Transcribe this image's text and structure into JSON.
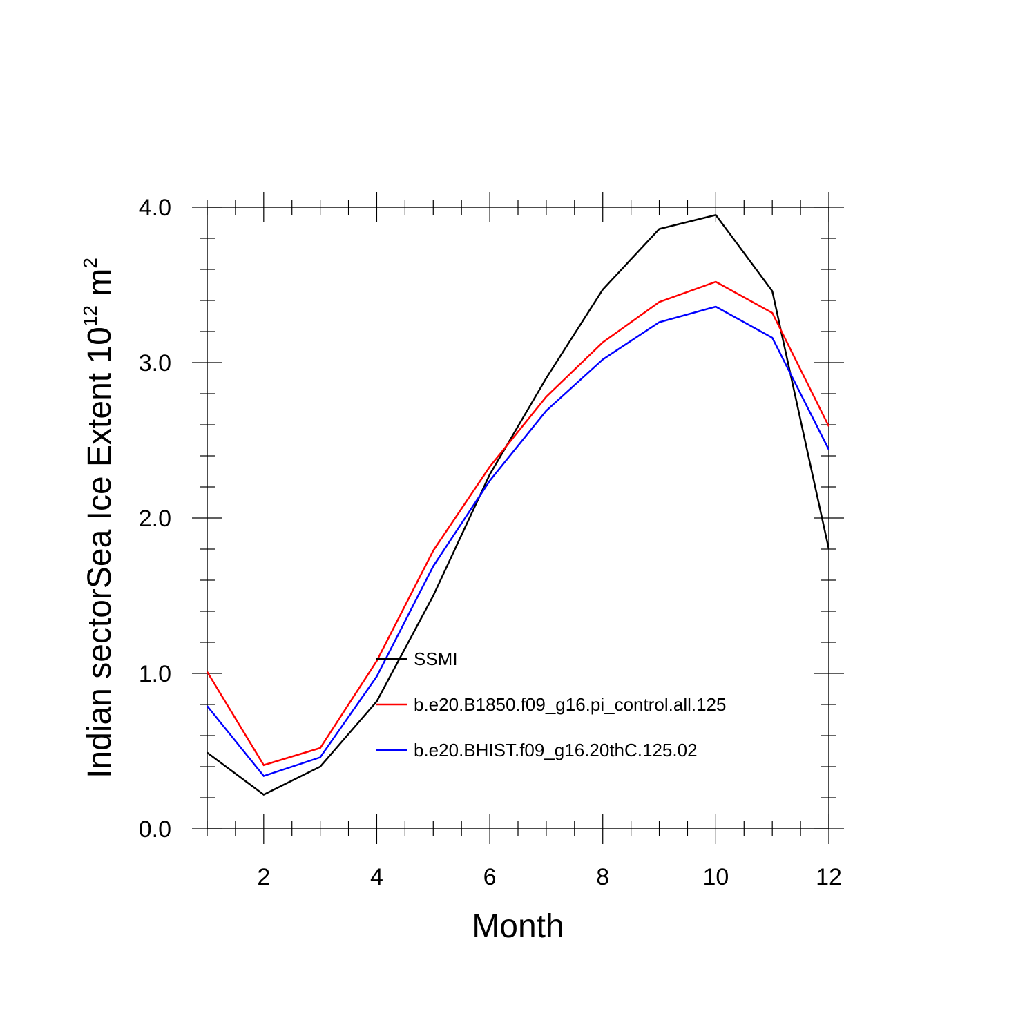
{
  "chart_data": {
    "type": "line",
    "title": "",
    "xlabel": "Month",
    "ylabel": {
      "prefix": "Indian sectorSea Ice Extent 10",
      "exp1": "12",
      "mid": " m",
      "exp2": "2"
    },
    "xlim": [
      1,
      12
    ],
    "ylim": [
      0,
      4
    ],
    "xticks": [
      2,
      4,
      6,
      8,
      10,
      12
    ],
    "xtick_labels": [
      "2",
      "4",
      "6",
      "8",
      "10",
      "12"
    ],
    "yticks": [
      0,
      1,
      2,
      3,
      4
    ],
    "ytick_labels": [
      "0.0",
      "1.0",
      "2.0",
      "3.0",
      "4.0"
    ],
    "grid": false,
    "legend_position": "center",
    "x": [
      1,
      2,
      3,
      4,
      5,
      6,
      7,
      8,
      9,
      10,
      11,
      12
    ],
    "series": [
      {
        "name": "SSMI",
        "color": "#000000",
        "values": [
          0.49,
          0.22,
          0.4,
          0.82,
          1.5,
          2.28,
          2.9,
          3.47,
          3.86,
          3.95,
          3.46,
          1.8
        ]
      },
      {
        "name": "b.e20.B1850.f09_g16.pi_control.all.125",
        "color": "#ff0000",
        "values": [
          1.01,
          0.41,
          0.52,
          1.08,
          1.79,
          2.33,
          2.78,
          3.13,
          3.39,
          3.52,
          3.32,
          2.59
        ]
      },
      {
        "name": "b.e20.BHIST.f09_g16.20thC.125.02",
        "color": "#0000ff",
        "values": [
          0.79,
          0.34,
          0.46,
          0.98,
          1.69,
          2.24,
          2.69,
          3.02,
          3.26,
          3.36,
          3.16,
          2.44
        ]
      }
    ]
  }
}
